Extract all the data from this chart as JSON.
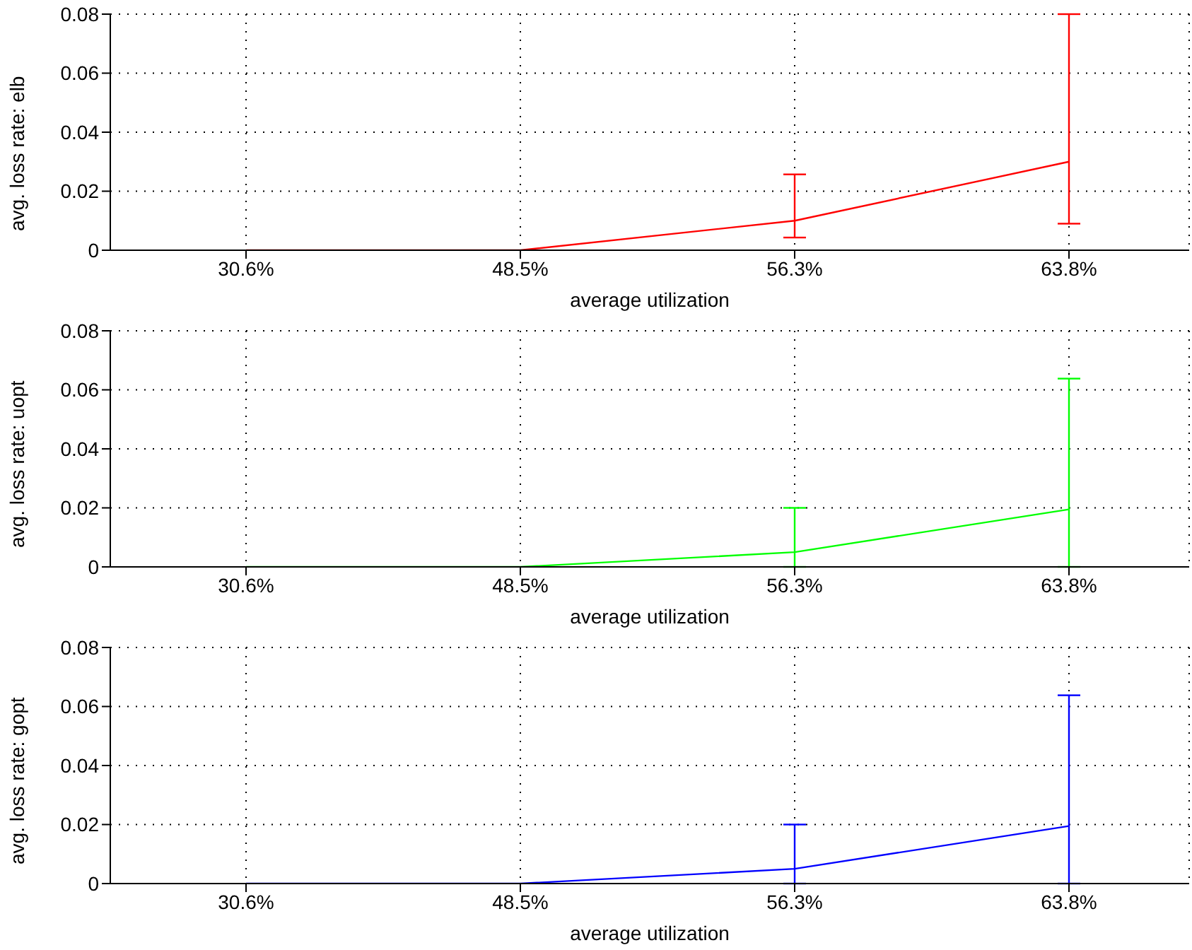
{
  "chart_data": [
    {
      "type": "line",
      "categories": [
        "30.6%",
        "48.5%",
        "56.3%",
        "63.8%"
      ],
      "xlabel": "average utilization",
      "ylabel": "avg. loss rate: elb",
      "ylim": [
        0,
        0.08
      ],
      "yticks": [
        0,
        0.02,
        0.04,
        0.06,
        0.08
      ],
      "grid": true,
      "series": [
        {
          "color": "#ff0000",
          "values": [
            0,
            0,
            0.01,
            0.03
          ],
          "errors": [
            null,
            null,
            [
              0.0043,
              0.0257
            ],
            [
              0.009,
              0.08
            ]
          ]
        }
      ]
    },
    {
      "type": "line",
      "categories": [
        "30.6%",
        "48.5%",
        "56.3%",
        "63.8%"
      ],
      "xlabel": "average utilization",
      "ylabel": "avg. loss rate: uopt",
      "ylim": [
        0,
        0.08
      ],
      "yticks": [
        0,
        0.02,
        0.04,
        0.06,
        0.08
      ],
      "grid": true,
      "series": [
        {
          "color": "#00ff00",
          "values": [
            0,
            0,
            0.005,
            0.0195
          ],
          "errors": [
            null,
            null,
            [
              0,
              0.02
            ],
            [
              0,
              0.0638
            ]
          ]
        }
      ]
    },
    {
      "type": "line",
      "categories": [
        "30.6%",
        "48.5%",
        "56.3%",
        "63.8%"
      ],
      "xlabel": "average utilization",
      "ylabel": "avg. loss rate: gopt",
      "ylim": [
        0,
        0.08
      ],
      "yticks": [
        0,
        0.02,
        0.04,
        0.06,
        0.08
      ],
      "grid": true,
      "series": [
        {
          "color": "#0000ff",
          "values": [
            0,
            0,
            0.005,
            0.0195
          ],
          "errors": [
            null,
            null,
            [
              0,
              0.02
            ],
            [
              0,
              0.0638
            ]
          ]
        }
      ]
    }
  ]
}
